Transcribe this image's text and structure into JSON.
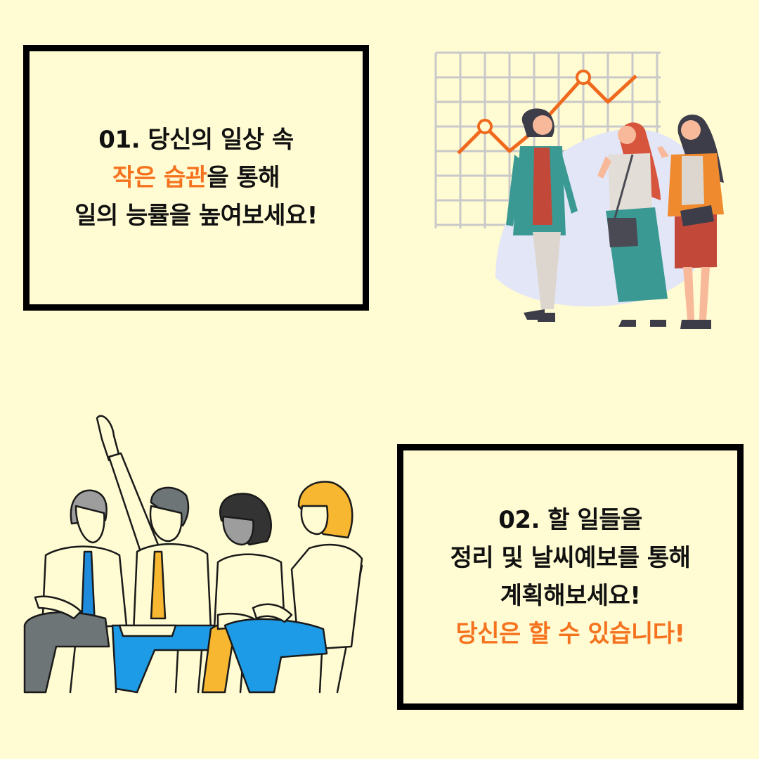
{
  "colors": {
    "background": "#fffbd2",
    "accent": "#f5731f",
    "text": "#111111",
    "border": "#000000"
  },
  "card1": {
    "line1": "01. 당신의 일상 속",
    "line2_highlight": "작은 습관",
    "line2_rest": "을 통해",
    "line3": "일의 능률을 높여보세요!"
  },
  "card2": {
    "line1": "02. 할 일들을",
    "line2": "정리 및 날씨예보를 통해",
    "line3": "계획해보세요!",
    "line4_highlight": "당신은 할 수 있습니다!"
  },
  "illustrations": {
    "top_right": "growth-chart-women-illustration",
    "bottom_left": "audience-raising-hand-illustration"
  }
}
